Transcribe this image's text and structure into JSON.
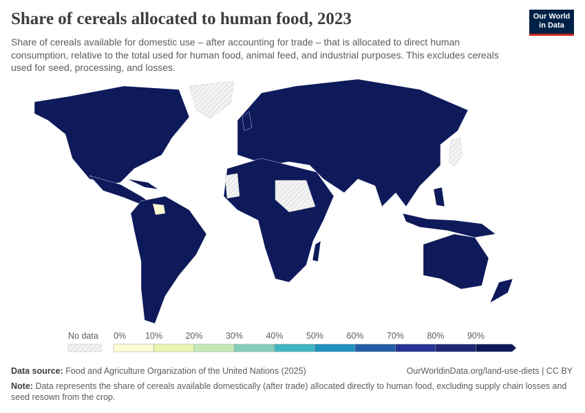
{
  "header": {
    "title": "Share of cereals allocated to human food, 2023",
    "subtitle": "Share of cereals available for domestic use – after accounting for trade – that is allocated to direct human consumption, relative to the total used for human food, animal feed, and industrial purposes. This excludes cereals used for seed, processing, and losses.",
    "logo": [
      "Our World",
      "in Data"
    ]
  },
  "legend": {
    "no_data": "No data",
    "ticks": [
      "0%",
      "10%",
      "20%",
      "30%",
      "40%",
      "50%",
      "60%",
      "70%",
      "80%",
      "90%"
    ],
    "colors": [
      "#fefed6",
      "#e8f6b1",
      "#c5e8b7",
      "#83cdbb",
      "#40b5c4",
      "#1e91c0",
      "#225ea8",
      "#253494",
      "#1e2873",
      "#0e1a5a"
    ]
  },
  "footer": {
    "source_label": "Data source:",
    "source": "Food and Agriculture Organization of the United Nations (2025)",
    "url": "OurWorldinData.org/land-use-diets | CC BY",
    "note_label": "Note:",
    "note": "Data represents the share of cereals available domestically (after trade) allocated directly to human food, excluding supply chain losses and seed resown from the crop."
  }
}
